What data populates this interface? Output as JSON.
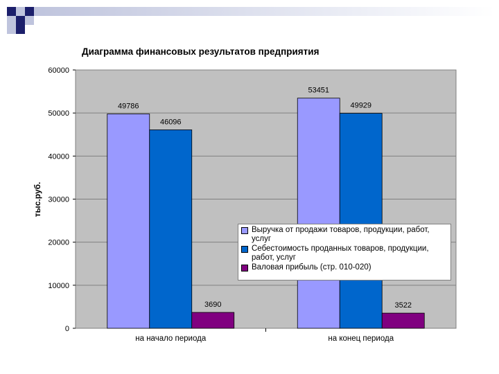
{
  "colors": {
    "plot_bg": "#c0c0c0",
    "grid": "#7f7f7f",
    "deco_dark": "#1c1f6b",
    "deco_light": "#bfc4dd"
  },
  "chart_data": {
    "type": "bar",
    "title": "Диаграмма финансовых результатов предприятия",
    "xlabel": "",
    "ylabel": "тыс.руб.",
    "ylim": [
      0,
      60000
    ],
    "yticks": [
      "0",
      "10000",
      "20000",
      "30000",
      "40000",
      "50000",
      "60000"
    ],
    "categories": [
      "на начало периода",
      "на конец периода"
    ],
    "series": [
      {
        "name": "Выручка от продажи товаров, продукции, работ, услуг",
        "values": [
          49786,
          53451
        ],
        "labels": [
          "49786",
          "53451"
        ],
        "color": "#9999ff"
      },
      {
        "name": "Себестоимость проданных товаров, продукции, работ, услуг",
        "values": [
          46096,
          49929
        ],
        "labels": [
          "46096",
          "49929"
        ],
        "color": "#0066cc"
      },
      {
        "name": "Валовая прибыль (стр. 010-020)",
        "values": [
          3690,
          3522
        ],
        "labels": [
          "3690",
          "3522"
        ],
        "color": "#800080"
      }
    ],
    "legend_position": "right"
  }
}
